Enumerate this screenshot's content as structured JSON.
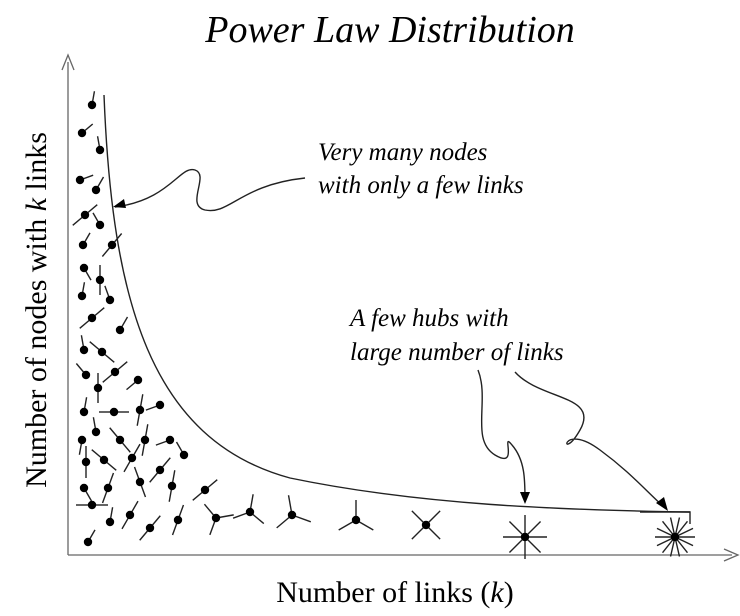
{
  "title": "Power Law Distribution",
  "y_axis_label": {
    "before": "Number of nodes with ",
    "variable": "k",
    "after": " links"
  },
  "x_axis_label": {
    "before": "Number of links (",
    "variable": "k",
    "after": ")"
  },
  "annotations": [
    {
      "lines": [
        "Very many nodes",
        "with only a few links"
      ]
    },
    {
      "lines": [
        "A few hubs with",
        "large number of links"
      ]
    }
  ]
}
